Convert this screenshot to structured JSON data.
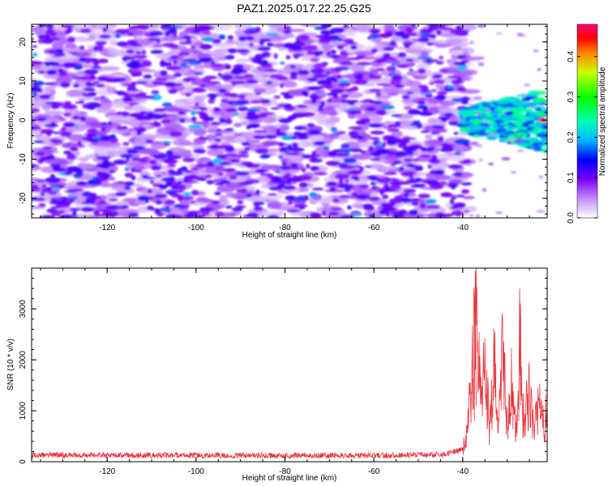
{
  "title": "PAZ1.2025.017.22.25.G25",
  "chart_data": [
    {
      "type": "heatmap",
      "xlabel": "Height of straight line (km)",
      "ylabel": "Frequency (Hz)",
      "xlim": [
        -137,
        -21
      ],
      "ylim": [
        -25,
        24.5
      ],
      "xticks": [
        -120,
        -100,
        -80,
        -60,
        -40
      ],
      "yticks": [
        -20,
        -10,
        0,
        10,
        20
      ],
      "colorbar": {
        "label": "Normalized spectral amplitude",
        "range": [
          0,
          0.48
        ],
        "ticks": [
          0.0,
          0.1,
          0.2,
          0.3,
          0.4
        ]
      },
      "features": {
        "noise_region_km": [
          -137,
          -40
        ],
        "signal_region_km": [
          -40,
          -21
        ],
        "signal_center_freq_hz": 2,
        "peak_amplitude": 0.45
      }
    },
    {
      "type": "line",
      "xlabel": "Height of straight line (km)",
      "ylabel": "SNR (10 * v/v)",
      "xlim": [
        -137,
        -21
      ],
      "ylim": [
        0,
        3800
      ],
      "xticks": [
        -120,
        -100,
        -80,
        -60,
        -40
      ],
      "yticks": [
        0,
        1000,
        2000,
        3000
      ],
      "color": "#e8343b",
      "key_points": [
        {
          "x": -137,
          "y": 130
        },
        {
          "x": -60,
          "y": 120
        },
        {
          "x": -44,
          "y": 140
        },
        {
          "x": -40,
          "y": 250
        },
        {
          "x": -39,
          "y": 800
        },
        {
          "x": -38,
          "y": 1800
        },
        {
          "x": -37.2,
          "y": 3750
        },
        {
          "x": -36.5,
          "y": 2400
        },
        {
          "x": -36,
          "y": 1400
        },
        {
          "x": -35,
          "y": 2200
        },
        {
          "x": -34,
          "y": 900
        },
        {
          "x": -33,
          "y": 2300
        },
        {
          "x": -32,
          "y": 1200
        },
        {
          "x": -31,
          "y": 2500
        },
        {
          "x": -30,
          "y": 800
        },
        {
          "x": -29,
          "y": 1900
        },
        {
          "x": -28,
          "y": 700
        },
        {
          "x": -27.2,
          "y": 3400
        },
        {
          "x": -26.5,
          "y": 1000
        },
        {
          "x": -25,
          "y": 1700
        },
        {
          "x": -24,
          "y": 700
        },
        {
          "x": -23,
          "y": 1500
        },
        {
          "x": -22,
          "y": 900
        },
        {
          "x": -21,
          "y": 1300
        }
      ]
    }
  ]
}
